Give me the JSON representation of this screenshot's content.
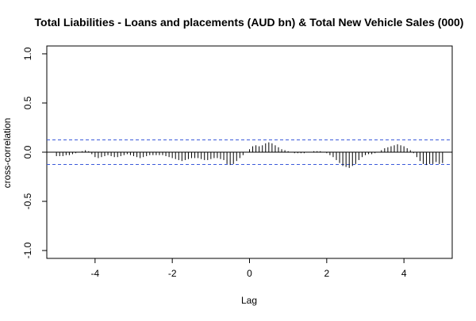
{
  "chart_data": {
    "type": "bar",
    "title": "Total Liabilities - Loans and placements (AUD bn) & Total New Vehicle Sales (000)",
    "xlabel": "Lag",
    "ylabel": "cross-correlation",
    "xlim": [
      -5.25,
      5.25
    ],
    "ylim": [
      -1.08,
      1.08
    ],
    "x_ticks": [
      -4,
      -2,
      0,
      2,
      4
    ],
    "x_tick_labels": [
      "-4",
      "-2",
      "0",
      "2",
      "4"
    ],
    "y_ticks": [
      -1.0,
      -0.5,
      0.0,
      0.5,
      1.0
    ],
    "y_tick_labels": [
      "-1.0",
      "-0.5",
      "0.0",
      "0.5",
      "1.0"
    ],
    "confidence_limit": 0.125,
    "lag_step": 0.0833333,
    "lags_start": -5.0,
    "values": [
      -0.04,
      -0.04,
      -0.04,
      -0.03,
      -0.03,
      -0.02,
      -0.01,
      0.0,
      0.01,
      0.02,
      0.01,
      -0.02,
      -0.05,
      -0.06,
      -0.05,
      -0.04,
      -0.03,
      -0.04,
      -0.05,
      -0.05,
      -0.04,
      -0.03,
      -0.02,
      -0.03,
      -0.04,
      -0.05,
      -0.06,
      -0.05,
      -0.04,
      -0.03,
      -0.03,
      -0.03,
      -0.03,
      -0.03,
      -0.04,
      -0.05,
      -0.06,
      -0.07,
      -0.08,
      -0.09,
      -0.08,
      -0.07,
      -0.06,
      -0.06,
      -0.06,
      -0.07,
      -0.08,
      -0.08,
      -0.07,
      -0.06,
      -0.06,
      -0.07,
      -0.08,
      -0.12,
      -0.13,
      -0.12,
      -0.09,
      -0.06,
      -0.03,
      0.0,
      0.03,
      0.06,
      0.07,
      0.06,
      0.07,
      0.09,
      0.1,
      0.09,
      0.07,
      0.05,
      0.03,
      0.02,
      0.01,
      0.0,
      -0.01,
      -0.01,
      -0.01,
      -0.01,
      0.0,
      0.0,
      0.01,
      0.01,
      0.01,
      0.0,
      -0.01,
      -0.03,
      -0.05,
      -0.08,
      -0.11,
      -0.14,
      -0.15,
      -0.16,
      -0.14,
      -0.12,
      -0.08,
      -0.05,
      -0.03,
      -0.02,
      -0.02,
      -0.01,
      0.0,
      0.02,
      0.04,
      0.05,
      0.06,
      0.07,
      0.08,
      0.07,
      0.06,
      0.04,
      0.02,
      -0.01,
      -0.05,
      -0.09,
      -0.12,
      -0.13,
      -0.12,
      -0.12,
      -0.1,
      -0.12,
      -0.11
    ],
    "colors": {
      "bars": "#000000",
      "confidence": "#3b5bdb",
      "frame": "#000000",
      "zero_line": "#000000"
    },
    "grid": false,
    "legend": "none"
  }
}
